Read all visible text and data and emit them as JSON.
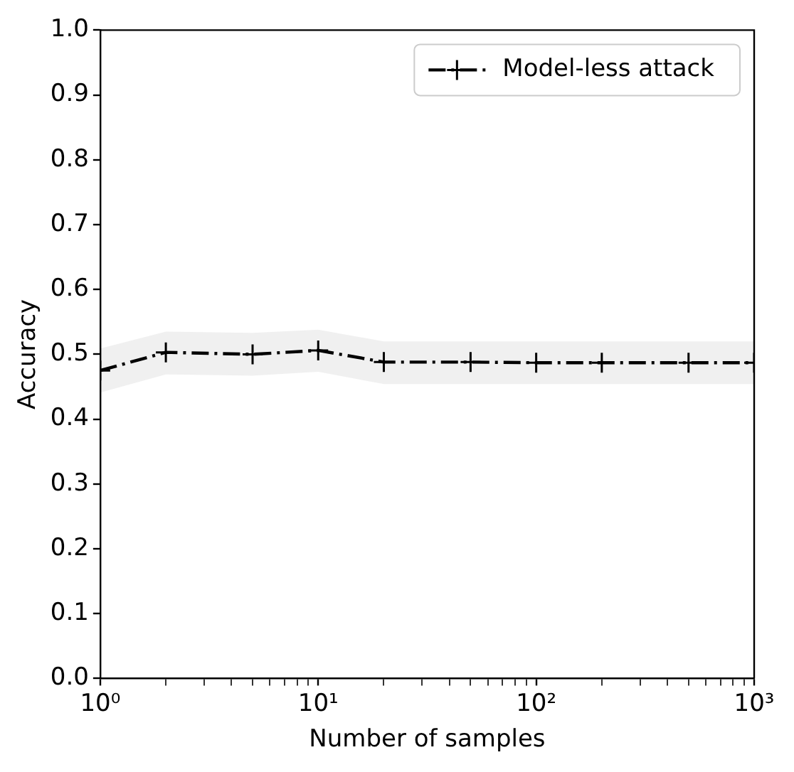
{
  "chart_data": {
    "type": "line",
    "xlabel": "Number of samples",
    "ylabel": "Accuracy",
    "log": "x",
    "x": [
      1,
      2,
      5,
      10,
      20,
      50,
      100,
      200,
      500,
      1000
    ],
    "series": [
      {
        "name": "Model-less attack",
        "color": "#000000",
        "values": [
          0.475,
          0.503,
          0.5,
          0.506,
          0.488,
          0.488,
          0.487,
          0.487,
          0.487,
          0.487
        ],
        "lower": [
          0.441,
          0.469,
          0.467,
          0.473,
          0.454,
          0.454,
          0.454,
          0.454,
          0.454,
          0.454
        ],
        "upper": [
          0.509,
          0.535,
          0.533,
          0.538,
          0.52,
          0.52,
          0.52,
          0.52,
          0.52,
          0.52
        ]
      }
    ],
    "xlim": [
      1,
      1000
    ],
    "xticks": [
      {
        "value": 1,
        "label": "10⁰"
      },
      {
        "value": 2,
        "label": null
      },
      {
        "value": 3,
        "label": null
      },
      {
        "value": 4,
        "label": null
      },
      {
        "value": 5,
        "label": null
      },
      {
        "value": 6,
        "label": null
      },
      {
        "value": 7,
        "label": null
      },
      {
        "value": 8,
        "label": null
      },
      {
        "value": 9,
        "label": null
      },
      {
        "value": 10,
        "label": "10¹"
      },
      {
        "value": 20,
        "label": null
      },
      {
        "value": 30,
        "label": null
      },
      {
        "value": 40,
        "label": null
      },
      {
        "value": 50,
        "label": null
      },
      {
        "value": 60,
        "label": null
      },
      {
        "value": 70,
        "label": null
      },
      {
        "value": 80,
        "label": null
      },
      {
        "value": 90,
        "label": null
      },
      {
        "value": 100,
        "label": "10²"
      },
      {
        "value": 200,
        "label": null
      },
      {
        "value": 300,
        "label": null
      },
      {
        "value": 400,
        "label": null
      },
      {
        "value": 500,
        "label": null
      },
      {
        "value": 600,
        "label": null
      },
      {
        "value": 700,
        "label": null
      },
      {
        "value": 800,
        "label": null
      },
      {
        "value": 900,
        "label": null
      },
      {
        "value": 1000,
        "label": "10³"
      }
    ],
    "ylim": [
      0,
      1
    ],
    "yticks": [
      {
        "value": 0,
        "label": "0.0"
      },
      0.1,
      0.2,
      0.3,
      0.4,
      0.5,
      0.6,
      0.7,
      0.8,
      0.9,
      {
        "value": 1,
        "label": "1.0"
      }
    ],
    "grid": false,
    "legend": "top right",
    "marker": "cross",
    "line_style": "dashed"
  }
}
